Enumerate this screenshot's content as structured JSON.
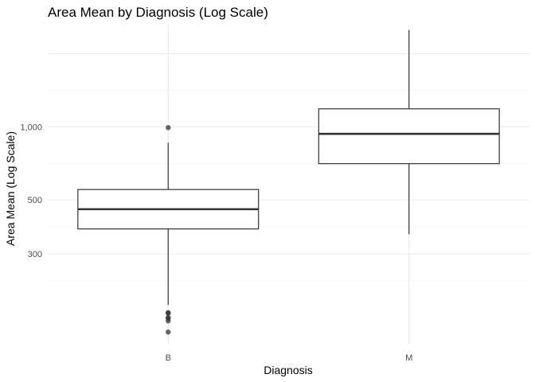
{
  "chart_data": {
    "type": "boxplot",
    "title": "Area Mean by Diagnosis (Log Scale)",
    "xlabel": "Diagnosis",
    "ylabel": "Area Mean (Log Scale)",
    "y_scale": "log10",
    "ylim": [
      128,
      2650
    ],
    "y_major_ticks": [
      300,
      500,
      1000
    ],
    "y_major_tick_labels": [
      "300",
      "500",
      "1,000"
    ],
    "y_gridlines_only": [
      2000
    ],
    "grid": true,
    "legend": "none",
    "categories": [
      "B",
      "M"
    ],
    "boxes": [
      {
        "category": "B",
        "whisker_low": 185,
        "q1": 380,
        "median": 458,
        "q3": 552,
        "whisker_high": 860,
        "outliers": [
          992,
          172,
          171,
          164,
          163,
          159,
          143
        ]
      },
      {
        "category": "M",
        "whisker_low": 361,
        "q1": 705,
        "median": 935,
        "q3": 1185,
        "whisker_high": 2500,
        "outliers": []
      }
    ],
    "colors": {
      "box_line": "#333333",
      "box_fill": "#ffffff",
      "grid": "#ebebeb",
      "outlier": "#333333"
    }
  }
}
